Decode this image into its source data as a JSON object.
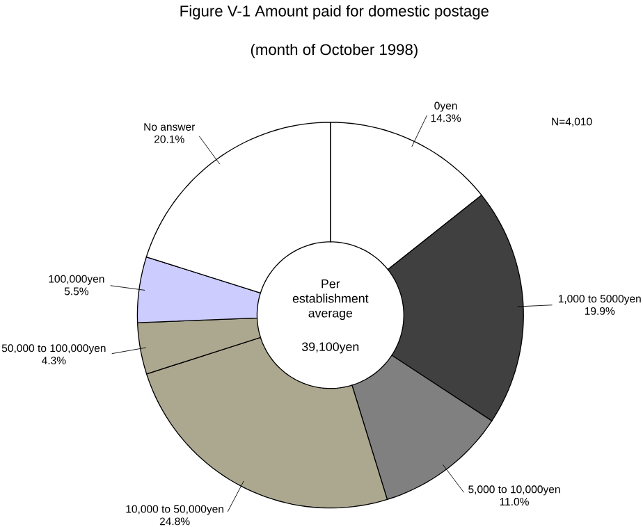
{
  "chart_data": {
    "type": "donut",
    "title": "Figure V-1 Amount paid for domestic postage",
    "subtitle": "(month of October 1998)",
    "categories": [
      "0yen",
      "1,000 to 5000yen",
      "5,000 to 10,000yen",
      "10,000 to 50,000yen",
      "50,000 to 100,000yen",
      "100,000yen",
      "No answer"
    ],
    "values": [
      14.3,
      19.9,
      11.0,
      24.8,
      4.3,
      5.5,
      20.1
    ],
    "value_labels": [
      "14.3%",
      "19.9%",
      "11.0%",
      "24.8%",
      "4.3%",
      "5.5%",
      "20.1%"
    ],
    "colors": [
      "#ffffff",
      "#404040",
      "#808080",
      "#aca890",
      "#aca890",
      "#ccccff",
      "#ffffff"
    ],
    "annotations": [
      "N=4,010",
      "Per establishment average",
      "39,100yen"
    ]
  }
}
